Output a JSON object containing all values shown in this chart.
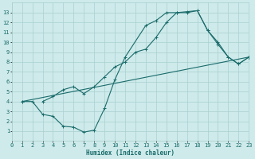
{
  "xlabel": "Humidex (Indice chaleur)",
  "bg_color": "#ceeaea",
  "grid_color": "#aacfcf",
  "line_color": "#1a6b6b",
  "xlim": [
    0,
    23
  ],
  "ylim": [
    0,
    14
  ],
  "xticks": [
    0,
    1,
    2,
    3,
    4,
    5,
    6,
    7,
    8,
    9,
    10,
    11,
    12,
    13,
    14,
    15,
    16,
    17,
    18,
    19,
    20,
    21,
    22,
    23
  ],
  "yticks": [
    1,
    2,
    3,
    4,
    5,
    6,
    7,
    8,
    9,
    10,
    11,
    12,
    13
  ],
  "line1_x": [
    1,
    2,
    3,
    4,
    5,
    6,
    7,
    8,
    9,
    10,
    11,
    13,
    14,
    15,
    16,
    17,
    18,
    19,
    20,
    21,
    22,
    23
  ],
  "line1_y": [
    4.0,
    4.0,
    2.7,
    2.5,
    1.5,
    1.4,
    0.9,
    1.1,
    3.3,
    6.2,
    8.5,
    11.7,
    12.2,
    13.0,
    13.0,
    13.1,
    13.2,
    11.2,
    9.8,
    8.5,
    7.8,
    8.5
  ],
  "line2_x": [
    1,
    23
  ],
  "line2_y": [
    4.0,
    8.5
  ],
  "line3_x": [
    3,
    4,
    5,
    6,
    7,
    8,
    9,
    10,
    11,
    12,
    13,
    14,
    15,
    16,
    17,
    18,
    19,
    20,
    21,
    22,
    23
  ],
  "line3_y": [
    4.0,
    4.5,
    5.2,
    5.5,
    4.8,
    5.5,
    6.5,
    7.5,
    8.0,
    9.0,
    9.3,
    10.5,
    12.0,
    13.0,
    13.0,
    13.2,
    11.2,
    10.0,
    8.5,
    7.8,
    8.5
  ]
}
